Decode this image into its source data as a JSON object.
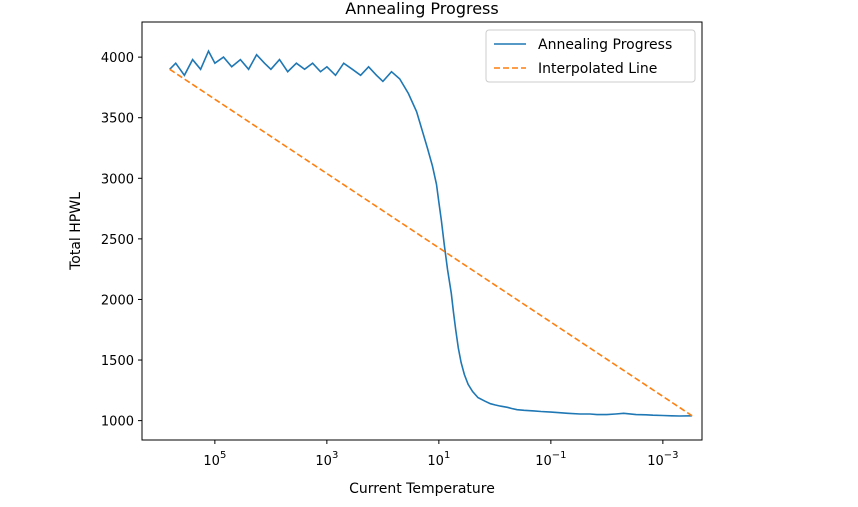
{
  "chart_data": {
    "type": "line",
    "title": "Annealing Progress",
    "xlabel": "Current Temperature",
    "ylabel": "Total HPWL",
    "x_scale": "log",
    "x_inverted": true,
    "xlim": [
      2000000,
      0.0002
    ],
    "ylim": [
      840,
      4290
    ],
    "x_ticks": [
      {
        "value": 100000,
        "base": "10",
        "exp": "5"
      },
      {
        "value": 1000,
        "base": "10",
        "exp": "3"
      },
      {
        "value": 10,
        "base": "10",
        "exp": "1"
      },
      {
        "value": 0.1,
        "base": "10",
        "exp": "−1"
      },
      {
        "value": 0.001,
        "base": "10",
        "exp": "−3"
      }
    ],
    "y_ticks": [
      {
        "value": 1000,
        "label": "1000"
      },
      {
        "value": 1500,
        "label": "1500"
      },
      {
        "value": 2000,
        "label": "2000"
      },
      {
        "value": 2500,
        "label": "2500"
      },
      {
        "value": 3000,
        "label": "3000"
      },
      {
        "value": 3500,
        "label": "3500"
      },
      {
        "value": 4000,
        "label": "4000"
      }
    ],
    "grid": false,
    "legend_position": "top-right",
    "series": [
      {
        "name": "Annealing Progress",
        "color": "#1f77b4",
        "style": "solid",
        "x": [
          640000,
          500000,
          350000,
          250000,
          180000,
          130000,
          100000,
          70000,
          50000,
          35000,
          25000,
          18000,
          13000,
          10000,
          7000,
          5000,
          3500,
          2500,
          1800,
          1300,
          1000,
          700,
          500,
          350,
          250,
          180,
          130,
          100,
          70,
          50,
          35,
          25,
          20,
          16,
          13,
          11,
          10,
          9,
          8,
          7,
          6,
          5.5,
          5,
          4.5,
          4,
          3.5,
          3,
          2.5,
          2,
          1.5,
          1.2,
          1,
          0.8,
          0.6,
          0.5,
          0.4,
          0.3,
          0.2,
          0.15,
          0.1,
          0.07,
          0.05,
          0.03,
          0.02,
          0.015,
          0.01,
          0.007,
          0.005,
          0.003,
          0.002,
          0.0015,
          0.001,
          0.0007,
          0.0005,
          0.0003
        ],
        "y": [
          3900,
          3950,
          3850,
          3980,
          3900,
          4050,
          3950,
          4000,
          3920,
          3980,
          3900,
          4020,
          3950,
          3900,
          3980,
          3880,
          3950,
          3900,
          3950,
          3880,
          3920,
          3850,
          3950,
          3900,
          3850,
          3920,
          3850,
          3800,
          3880,
          3820,
          3700,
          3550,
          3400,
          3250,
          3100,
          2950,
          2800,
          2650,
          2450,
          2250,
          2050,
          1900,
          1750,
          1600,
          1480,
          1380,
          1300,
          1240,
          1190,
          1160,
          1140,
          1130,
          1120,
          1110,
          1100,
          1090,
          1085,
          1080,
          1075,
          1070,
          1065,
          1060,
          1055,
          1055,
          1050,
          1050,
          1055,
          1060,
          1050,
          1048,
          1045,
          1042,
          1040,
          1038,
          1040
        ]
      },
      {
        "name": "Interpolated Line",
        "color": "#ff7f0e",
        "style": "dashed",
        "x": [
          640000,
          0.0003
        ],
        "y": [
          3900,
          1040
        ]
      }
    ]
  }
}
